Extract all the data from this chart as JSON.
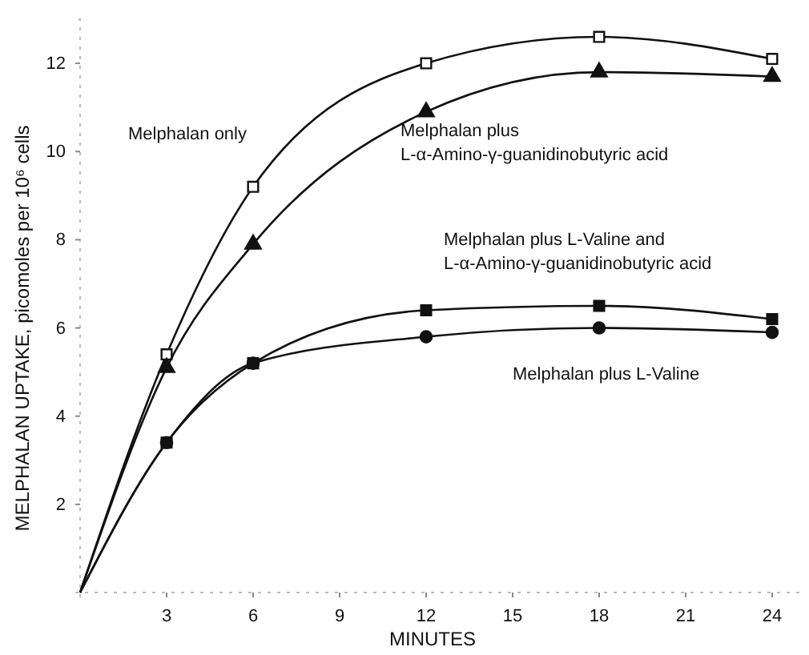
{
  "chart_data": {
    "type": "line",
    "xlabel": "MINUTES",
    "ylabel": "MELPHALAN UPTAKE, picomoles per 10⁶ cells",
    "x": [
      0,
      3,
      6,
      12,
      18,
      24
    ],
    "xlim": [
      0,
      25
    ],
    "xticks": [
      3,
      6,
      9,
      12,
      15,
      18,
      21,
      24
    ],
    "ylim": [
      0,
      13
    ],
    "yticks": [
      2,
      4,
      6,
      8,
      10,
      12
    ],
    "grid": false,
    "line_style": "solid",
    "series": [
      {
        "name": "Melphalan only",
        "color": "#111111",
        "marker": "square-open",
        "values": [
          0,
          5.4,
          9.2,
          12.0,
          12.6,
          12.1
        ]
      },
      {
        "name": "Melphalan plus L-α-Amino-γ-guanidinobutyric acid",
        "color": "#111111",
        "marker": "triangle",
        "values": [
          0,
          5.1,
          7.9,
          10.9,
          11.8,
          11.7
        ]
      },
      {
        "name": "Melphalan plus L-Valine",
        "color": "#111111",
        "marker": "circle",
        "values": [
          0,
          3.4,
          5.2,
          5.8,
          6.0,
          5.9
        ]
      },
      {
        "name": "Melphalan plus L-Valine and L-α-Amino-γ-guanidinobutyric acid",
        "color": "#111111",
        "marker": "square",
        "values": [
          0,
          3.4,
          5.2,
          6.4,
          6.5,
          6.2
        ]
      }
    ]
  }
}
